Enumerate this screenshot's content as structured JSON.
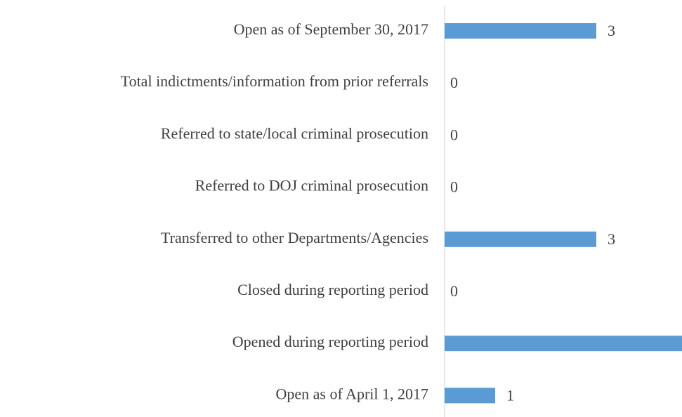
{
  "chart_data": {
    "type": "barh",
    "categories": [
      "Open as of September 30, 2017",
      "Total indictments/information from prior referrals",
      "Referred to state/local criminal prosecution",
      "Referred to DOJ criminal prosecution",
      "Transferred to other Departments/Agencies",
      "Closed during reporting period",
      "Opened during reporting period",
      "Open as of April 1, 2017"
    ],
    "values": [
      3,
      0,
      0,
      0,
      3,
      0,
      5,
      1
    ],
    "color": "#5b9bd5"
  }
}
